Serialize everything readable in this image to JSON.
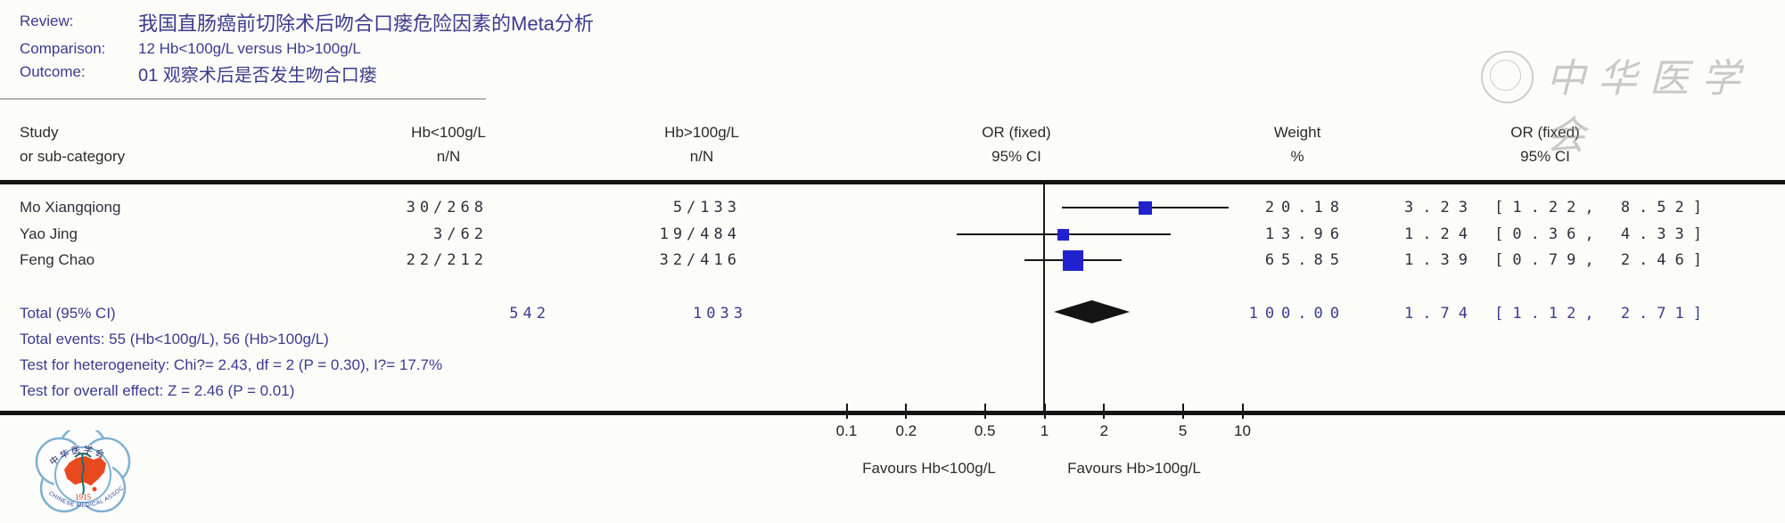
{
  "header": {
    "review_label": "Review:",
    "review_title": "我国直肠癌前切除术后吻合口瘘危险因素的Meta分析",
    "comparison_label": "Comparison:",
    "comparison_value": "12 Hb<100g/L versus Hb>100g/L",
    "outcome_label": "Outcome:",
    "outcome_value": "01 观察术后是否发生吻合口瘘"
  },
  "table_headers": {
    "study_line1": "Study",
    "study_line2": "or sub-category",
    "group1_line1": "Hb<100g/L",
    "group1_line2": "n/N",
    "group2_line1": "Hb>100g/L",
    "group2_line2": "n/N",
    "or_plot_line1": "OR (fixed)",
    "or_plot_line2": "95% CI",
    "weight_line1": "Weight",
    "weight_line2": "%",
    "or_text_line1": "OR (fixed)",
    "or_text_line2": "95% CI"
  },
  "studies": [
    {
      "name": "Mo Xiangqiong",
      "n1": "30/268",
      "n2": "5/133",
      "weight": "20.18",
      "or_ci": "3.23 [1.22, 8.52]"
    },
    {
      "name": "Yao Jing",
      "n1": "3/62",
      "n2": "19/484",
      "weight": "13.96",
      "or_ci": "1.24 [0.36, 4.33]"
    },
    {
      "name": "Feng Chao",
      "n1": "22/212",
      "n2": "32/416",
      "weight": "65.85",
      "or_ci": "1.39 [0.79, 2.46]"
    }
  ],
  "total": {
    "label": "Total (95% CI)",
    "n1": "542",
    "n2": "1033",
    "weight": "100.00",
    "or_ci": "1.74 [1.12, 2.71]"
  },
  "footnotes": {
    "events": "Total events: 55 (Hb<100g/L), 56 (Hb>100g/L)",
    "heterogeneity": "Test for heterogeneity: Chi?= 2.43, df = 2 (P = 0.30), I?= 17.7%",
    "overall_effect": "Test for overall effect: Z = 2.46 (P = 0.01)"
  },
  "axis": {
    "tick_labels": [
      "0.1",
      "0.2",
      "0.5",
      "1",
      "2",
      "5",
      "10"
    ],
    "favours_left": "Favours Hb<100g/L",
    "favours_right": "Favours Hb>100g/L"
  },
  "watermark": {
    "script_text": "中华医学会"
  },
  "logo": {
    "year": "1915",
    "bottom_text": "CHINESE MEDICAL ASSOCIATION",
    "top_text": "中 华 医 学 会"
  },
  "colors": {
    "navy_text": "#3b3b8f",
    "square_blue": "#2121cd",
    "diamond_black": "#141414",
    "line_black": "#161616",
    "logo_blue": "#7fb0cf",
    "logo_red": "#e8491f"
  },
  "chart_data": {
    "type": "forest",
    "effect_measure": "OR (fixed) 95% CI",
    "model": "fixed",
    "x_scale": "log",
    "x_ticks": [
      0.1,
      0.2,
      0.5,
      1,
      2,
      5,
      10
    ],
    "null_line": 1,
    "studies": [
      {
        "name": "Mo Xiangqiong",
        "n_exposed": "30/268",
        "n_control": "5/133",
        "weight_pct": 20.18,
        "or": 3.23,
        "ci_low": 1.22,
        "ci_high": 8.52
      },
      {
        "name": "Yao Jing",
        "n_exposed": "3/62",
        "n_control": "19/484",
        "weight_pct": 13.96,
        "or": 1.24,
        "ci_low": 0.36,
        "ci_high": 4.33
      },
      {
        "name": "Feng Chao",
        "n_exposed": "22/212",
        "n_control": "32/416",
        "weight_pct": 65.85,
        "or": 1.39,
        "ci_low": 0.79,
        "ci_high": 2.46
      }
    ],
    "total": {
      "n_exposed": 542,
      "n_control": 1033,
      "weight_pct": 100.0,
      "or": 1.74,
      "ci_low": 1.12,
      "ci_high": 2.71
    },
    "total_events": {
      "exposed": 55,
      "control": 56
    },
    "heterogeneity": {
      "chi2": 2.43,
      "df": 2,
      "p": 0.3,
      "i2_pct": 17.7
    },
    "overall_effect": {
      "z": 2.46,
      "p": 0.01
    },
    "favours_left": "Favours Hb<100g/L",
    "favours_right": "Favours Hb>100g/L"
  }
}
